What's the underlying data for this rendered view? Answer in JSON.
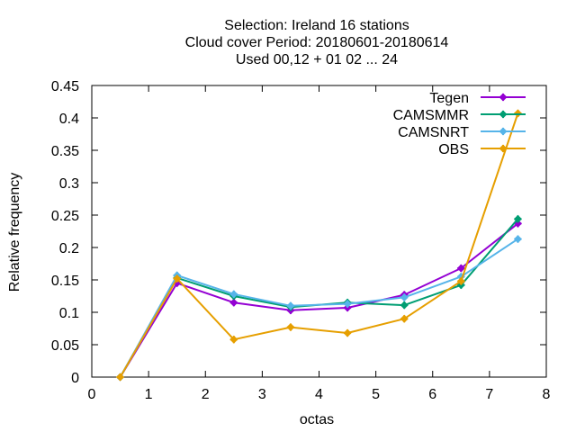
{
  "chart_data": {
    "type": "line",
    "title_lines": [
      "Selection: Ireland      16 stations",
      "Cloud cover  Period: 20180601-20180614",
      "Used  00,12  + 01 02 ... 24"
    ],
    "xlabel": "octas",
    "ylabel": "Relative frequency",
    "xlim": [
      0,
      8
    ],
    "ylim": [
      0,
      0.45
    ],
    "x_ticks": [
      0,
      1,
      2,
      3,
      4,
      5,
      6,
      7,
      8
    ],
    "x_tick_labels": [
      "0",
      "1",
      "2",
      "3",
      "4",
      "5",
      "6",
      "7",
      "8"
    ],
    "y_ticks": [
      0,
      0.05,
      0.1,
      0.15,
      0.2,
      0.25,
      0.3,
      0.35,
      0.4,
      0.45
    ],
    "y_tick_labels": [
      "0",
      "0.05",
      "0.1",
      "0.15",
      "0.2",
      "0.25",
      "0.3",
      "0.35",
      "0.4",
      "0.45"
    ],
    "grid": false,
    "legend_position": "top-right",
    "x": [
      0.5,
      1.5,
      2.5,
      3.5,
      4.5,
      5.5,
      6.5,
      7.5
    ],
    "series": [
      {
        "name": "Tegen",
        "color": "#9400d3",
        "values": [
          0.0,
          0.145,
          0.115,
          0.103,
          0.107,
          0.127,
          0.168,
          0.237
        ]
      },
      {
        "name": "CAMSMMR",
        "color": "#009e73",
        "values": [
          0.0,
          0.153,
          0.125,
          0.108,
          0.115,
          0.111,
          0.142,
          0.244
        ]
      },
      {
        "name": "CAMSNRT",
        "color": "#56b4e9",
        "values": [
          0.0,
          0.157,
          0.128,
          0.11,
          0.113,
          0.123,
          0.155,
          0.213
        ]
      },
      {
        "name": "OBS",
        "color": "#e69f00",
        "values": [
          0.0,
          0.152,
          0.058,
          0.077,
          0.068,
          0.09,
          0.148,
          0.407
        ]
      }
    ]
  }
}
